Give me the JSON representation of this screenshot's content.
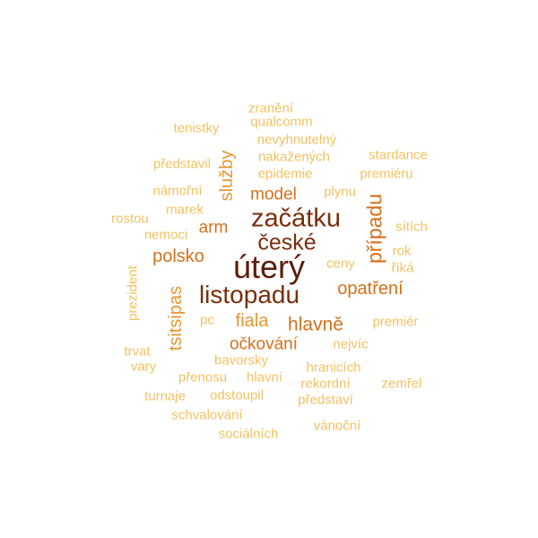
{
  "palette": {
    "darkest": "#5a1d0a",
    "dark": "#7a2e0c",
    "mid_dark": "#a4470e",
    "orange": "#d5701d",
    "light_orange": "#e8952f",
    "pale": "#f4c161"
  },
  "words": [
    {
      "text": "úterý",
      "tier": "darkest"
    },
    {
      "text": "začátku",
      "tier": "dark"
    },
    {
      "text": "listopadu",
      "tier": "dark"
    },
    {
      "text": "české",
      "tier": "dark"
    },
    {
      "text": "případu",
      "tier": "orange"
    },
    {
      "text": "opatření",
      "tier": "orange"
    },
    {
      "text": "hlavně",
      "tier": "orange"
    },
    {
      "text": "model",
      "tier": "orange"
    },
    {
      "text": "polsko",
      "tier": "orange"
    },
    {
      "text": "arm",
      "tier": "orange"
    },
    {
      "text": "očkování",
      "tier": "orange"
    },
    {
      "text": "fiala",
      "tier": "light_orange"
    },
    {
      "text": "služby",
      "tier": "light_orange"
    },
    {
      "text": "tsitsipas",
      "tier": "light_orange"
    },
    {
      "text": "zranění",
      "tier": "pale"
    },
    {
      "text": "qualcomm",
      "tier": "pale"
    },
    {
      "text": "tenistky",
      "tier": "pale"
    },
    {
      "text": "nevyhnutelný",
      "tier": "pale"
    },
    {
      "text": "nakažených",
      "tier": "pale"
    },
    {
      "text": "stardance",
      "tier": "pale"
    },
    {
      "text": "představil",
      "tier": "pale"
    },
    {
      "text": "epidemie",
      "tier": "pale"
    },
    {
      "text": "premiéru",
      "tier": "pale"
    },
    {
      "text": "námořní",
      "tier": "pale"
    },
    {
      "text": "plynu",
      "tier": "pale"
    },
    {
      "text": "marek",
      "tier": "pale"
    },
    {
      "text": "sítích",
      "tier": "pale"
    },
    {
      "text": "rostou",
      "tier": "pale"
    },
    {
      "text": "nemoci",
      "tier": "pale"
    },
    {
      "text": "rok",
      "tier": "pale"
    },
    {
      "text": "ceny",
      "tier": "pale"
    },
    {
      "text": "říká",
      "tier": "pale"
    },
    {
      "text": "prezident",
      "tier": "pale"
    },
    {
      "text": "pc",
      "tier": "pale"
    },
    {
      "text": "premiér",
      "tier": "pale"
    },
    {
      "text": "nejvíc",
      "tier": "pale"
    },
    {
      "text": "trvat",
      "tier": "pale"
    },
    {
      "text": "bavorsky",
      "tier": "pale"
    },
    {
      "text": "vary",
      "tier": "pale"
    },
    {
      "text": "hranicích",
      "tier": "pale"
    },
    {
      "text": "přenosu",
      "tier": "pale"
    },
    {
      "text": "hlavní",
      "tier": "pale"
    },
    {
      "text": "rekordní",
      "tier": "pale"
    },
    {
      "text": "zemřel",
      "tier": "pale"
    },
    {
      "text": "turnaje",
      "tier": "pale"
    },
    {
      "text": "odstoupil",
      "tier": "pale"
    },
    {
      "text": "představí",
      "tier": "pale"
    },
    {
      "text": "schvalování",
      "tier": "pale"
    },
    {
      "text": "vánoční",
      "tier": "pale"
    },
    {
      "text": "sociálních",
      "tier": "pale"
    }
  ]
}
